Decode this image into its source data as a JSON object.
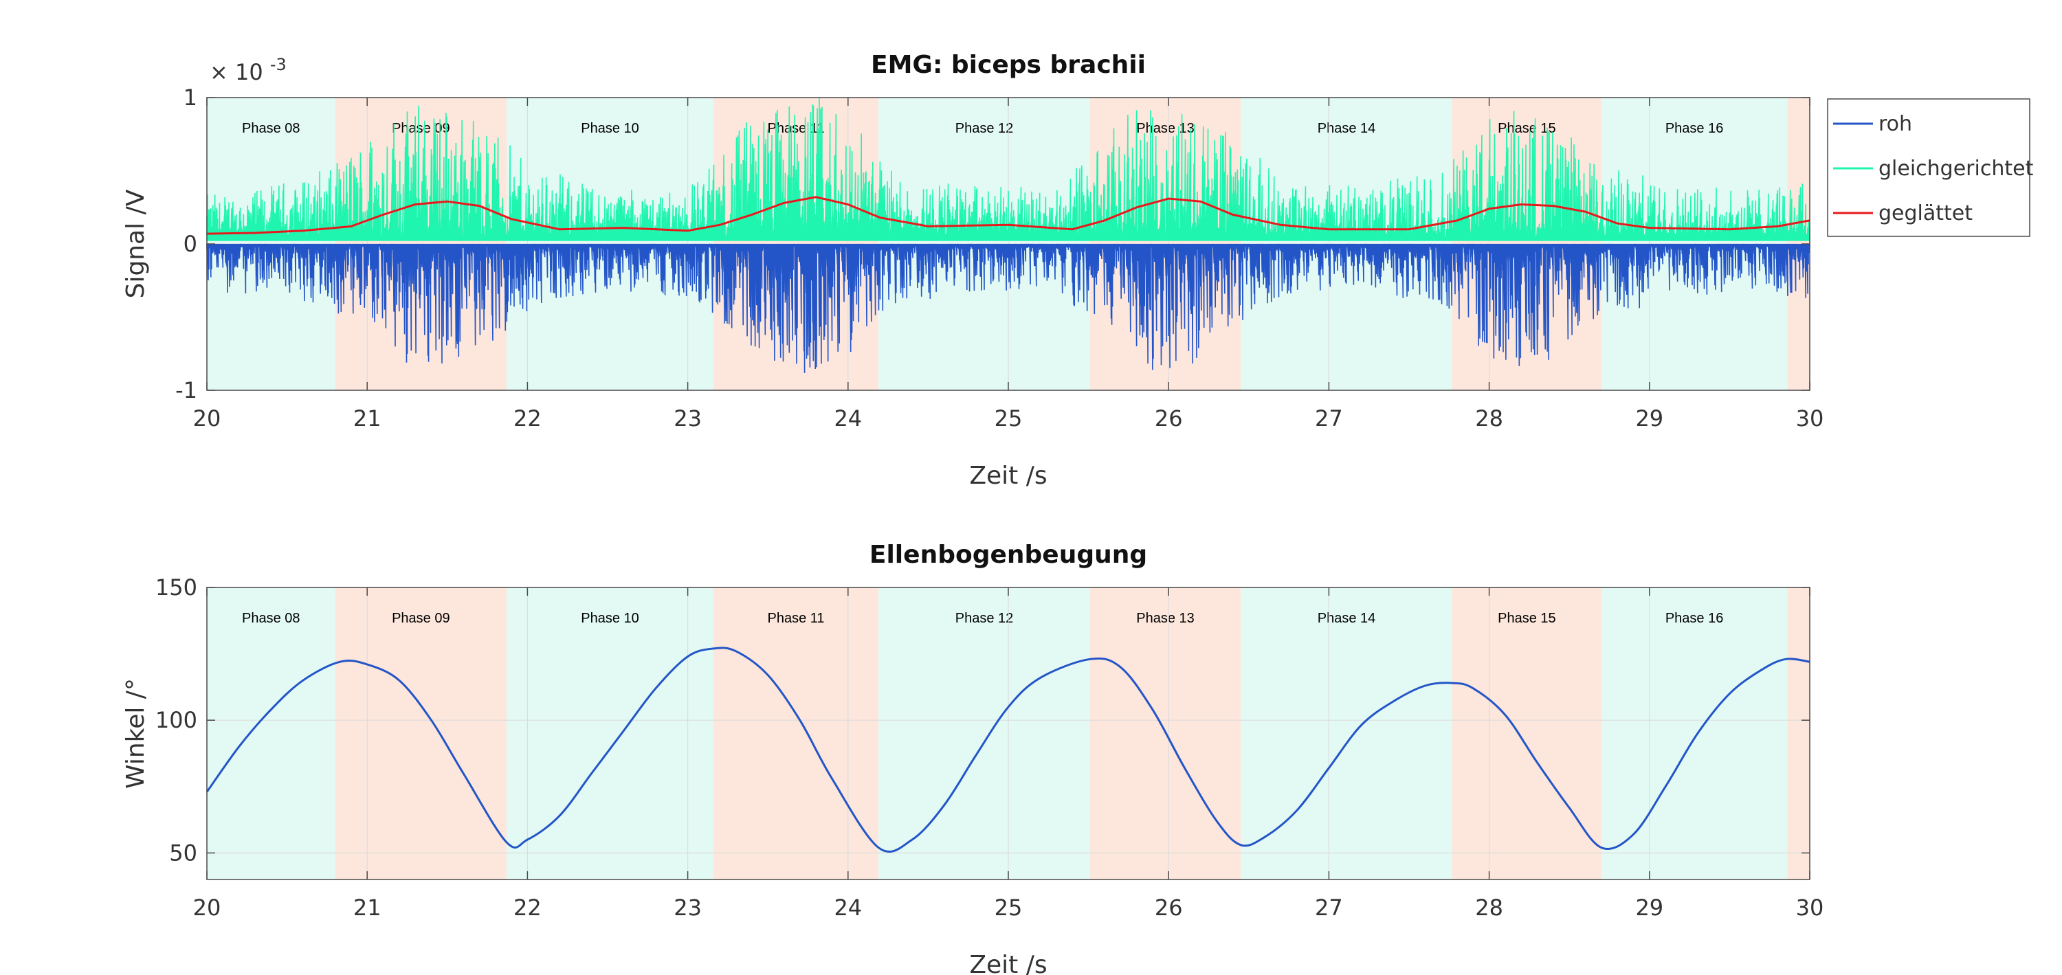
{
  "colors": {
    "raw": "#2355c8",
    "rectified": "#20f5b0",
    "smoothed": "#e8191d",
    "phase_teal": "#e3faf4",
    "phase_orange": "#fde6db",
    "axis": "#4a4a4a",
    "grid": "#dcdcdc"
  },
  "chart_data": [
    {
      "type": "line",
      "title": "EMG: biceps brachii",
      "xlabel": "Zeit /s",
      "ylabel": "Signal /V",
      "exponent_label": "× 10",
      "exponent_power": "-3",
      "xlim": [
        20,
        30
      ],
      "ylim": [
        -1,
        1
      ],
      "x_ticks": [
        "20",
        "21",
        "22",
        "23",
        "24",
        "25",
        "26",
        "27",
        "28",
        "29",
        "30"
      ],
      "y_ticks": [
        "-1",
        "0",
        "1"
      ],
      "grid": true,
      "legend_position": "outside-right",
      "legend": [
        "roh",
        "gleichgerichtet",
        "geglättet"
      ],
      "series": [
        {
          "name": "roh",
          "style": "noise-envelope-negative",
          "x": [
            20.0,
            20.4,
            20.8,
            21.1,
            21.4,
            21.7,
            22.0,
            22.5,
            23.0,
            23.4,
            23.7,
            24.0,
            24.3,
            24.8,
            25.3,
            25.7,
            26.0,
            26.3,
            26.7,
            27.2,
            27.7,
            28.0,
            28.3,
            28.7,
            29.2,
            29.7,
            30.0
          ],
          "y": [
            -0.3,
            -0.35,
            -0.45,
            -0.7,
            -0.9,
            -0.75,
            -0.45,
            -0.3,
            -0.35,
            -0.7,
            -0.95,
            -0.75,
            -0.4,
            -0.3,
            -0.3,
            -0.7,
            -0.95,
            -0.7,
            -0.35,
            -0.3,
            -0.4,
            -0.8,
            -0.85,
            -0.5,
            -0.35,
            -0.3,
            -0.4
          ]
        },
        {
          "name": "gleichgerichtet",
          "style": "noise-envelope-positive",
          "x": [
            20.0,
            20.4,
            20.8,
            21.1,
            21.4,
            21.7,
            22.0,
            22.5,
            23.0,
            23.4,
            23.7,
            24.0,
            24.3,
            24.8,
            25.3,
            25.7,
            26.0,
            26.3,
            26.7,
            27.2,
            27.7,
            28.0,
            28.3,
            28.7,
            29.2,
            29.7,
            30.0
          ],
          "y": [
            0.25,
            0.3,
            0.45,
            0.8,
            0.95,
            0.8,
            0.45,
            0.3,
            0.3,
            0.8,
            1.0,
            0.8,
            0.4,
            0.3,
            0.3,
            0.75,
            0.95,
            0.75,
            0.35,
            0.3,
            0.4,
            0.8,
            0.85,
            0.45,
            0.3,
            0.3,
            0.35
          ]
        },
        {
          "name": "geglättet",
          "x": [
            20.0,
            20.3,
            20.6,
            20.9,
            21.1,
            21.3,
            21.5,
            21.7,
            21.9,
            22.2,
            22.6,
            23.0,
            23.2,
            23.4,
            23.6,
            23.8,
            24.0,
            24.2,
            24.5,
            25.0,
            25.4,
            25.6,
            25.8,
            26.0,
            26.2,
            26.4,
            26.7,
            27.0,
            27.5,
            27.8,
            28.0,
            28.2,
            28.4,
            28.6,
            28.8,
            29.0,
            29.5,
            29.8,
            30.0
          ],
          "y": [
            0.07,
            0.075,
            0.09,
            0.12,
            0.2,
            0.27,
            0.29,
            0.26,
            0.17,
            0.1,
            0.11,
            0.09,
            0.13,
            0.2,
            0.28,
            0.32,
            0.27,
            0.18,
            0.12,
            0.13,
            0.1,
            0.16,
            0.25,
            0.31,
            0.29,
            0.2,
            0.13,
            0.1,
            0.1,
            0.16,
            0.24,
            0.27,
            0.26,
            0.22,
            0.14,
            0.11,
            0.1,
            0.12,
            0.16
          ]
        }
      ],
      "phases": [
        {
          "label": "Phase 08",
          "start": 20.0,
          "end": 20.8,
          "color": "teal"
        },
        {
          "label": "Phase 09",
          "start": 20.8,
          "end": 21.87,
          "color": "orange"
        },
        {
          "label": "Phase 10",
          "start": 21.87,
          "end": 23.16,
          "color": "teal"
        },
        {
          "label": "Phase 11",
          "start": 23.16,
          "end": 24.19,
          "color": "orange"
        },
        {
          "label": "Phase 12",
          "start": 24.19,
          "end": 25.51,
          "color": "teal"
        },
        {
          "label": "Phase 13",
          "start": 25.51,
          "end": 26.45,
          "color": "orange"
        },
        {
          "label": "Phase 14",
          "start": 26.45,
          "end": 27.77,
          "color": "teal"
        },
        {
          "label": "Phase 15",
          "start": 27.77,
          "end": 28.7,
          "color": "orange"
        },
        {
          "label": "Phase 16",
          "start": 28.7,
          "end": 29.86,
          "color": "teal"
        },
        {
          "label": "",
          "start": 29.86,
          "end": 30.0,
          "color": "orange"
        }
      ]
    },
    {
      "type": "line",
      "title": "Ellenbogenbeugung",
      "xlabel": "Zeit /s",
      "ylabel": "Winkel /°",
      "xlim": [
        20,
        30
      ],
      "ylim": [
        40,
        150
      ],
      "x_ticks": [
        "20",
        "21",
        "22",
        "23",
        "24",
        "25",
        "26",
        "27",
        "28",
        "29",
        "30"
      ],
      "y_ticks": [
        "50",
        "100",
        "150"
      ],
      "grid": true,
      "series": [
        {
          "name": "Winkel",
          "x": [
            20.0,
            20.2,
            20.4,
            20.6,
            20.83,
            21.0,
            21.2,
            21.4,
            21.6,
            21.87,
            22.0,
            22.2,
            22.4,
            22.6,
            22.8,
            23.0,
            23.16,
            23.3,
            23.5,
            23.7,
            23.9,
            24.19,
            24.4,
            24.6,
            24.8,
            25.0,
            25.2,
            25.51,
            25.7,
            25.9,
            26.1,
            26.3,
            26.45,
            26.6,
            26.8,
            27.0,
            27.2,
            27.4,
            27.6,
            27.77,
            27.9,
            28.1,
            28.3,
            28.5,
            28.7,
            28.9,
            29.1,
            29.3,
            29.5,
            29.7,
            29.85,
            30.0
          ],
          "y": [
            73,
            90,
            104,
            115,
            122,
            121,
            115,
            100,
            80,
            54,
            55,
            64,
            80,
            96,
            112,
            124,
            127,
            126,
            117,
            100,
            78,
            52,
            55,
            68,
            87,
            105,
            116,
            123,
            120,
            104,
            82,
            62,
            53,
            56,
            66,
            82,
            98,
            107,
            113,
            114,
            112,
            102,
            84,
            67,
            52,
            57,
            75,
            95,
            110,
            119,
            123,
            122
          ]
        }
      ],
      "phases": [
        {
          "label": "Phase 08",
          "start": 20.0,
          "end": 20.8,
          "color": "teal"
        },
        {
          "label": "Phase 09",
          "start": 20.8,
          "end": 21.87,
          "color": "orange"
        },
        {
          "label": "Phase 10",
          "start": 21.87,
          "end": 23.16,
          "color": "teal"
        },
        {
          "label": "Phase 11",
          "start": 23.16,
          "end": 24.19,
          "color": "orange"
        },
        {
          "label": "Phase 12",
          "start": 24.19,
          "end": 25.51,
          "color": "teal"
        },
        {
          "label": "Phase 13",
          "start": 25.51,
          "end": 26.45,
          "color": "orange"
        },
        {
          "label": "Phase 14",
          "start": 26.45,
          "end": 27.77,
          "color": "teal"
        },
        {
          "label": "Phase 15",
          "start": 27.77,
          "end": 28.7,
          "color": "orange"
        },
        {
          "label": "Phase 16",
          "start": 28.7,
          "end": 29.86,
          "color": "teal"
        },
        {
          "label": "",
          "start": 29.86,
          "end": 30.0,
          "color": "orange"
        }
      ]
    }
  ]
}
